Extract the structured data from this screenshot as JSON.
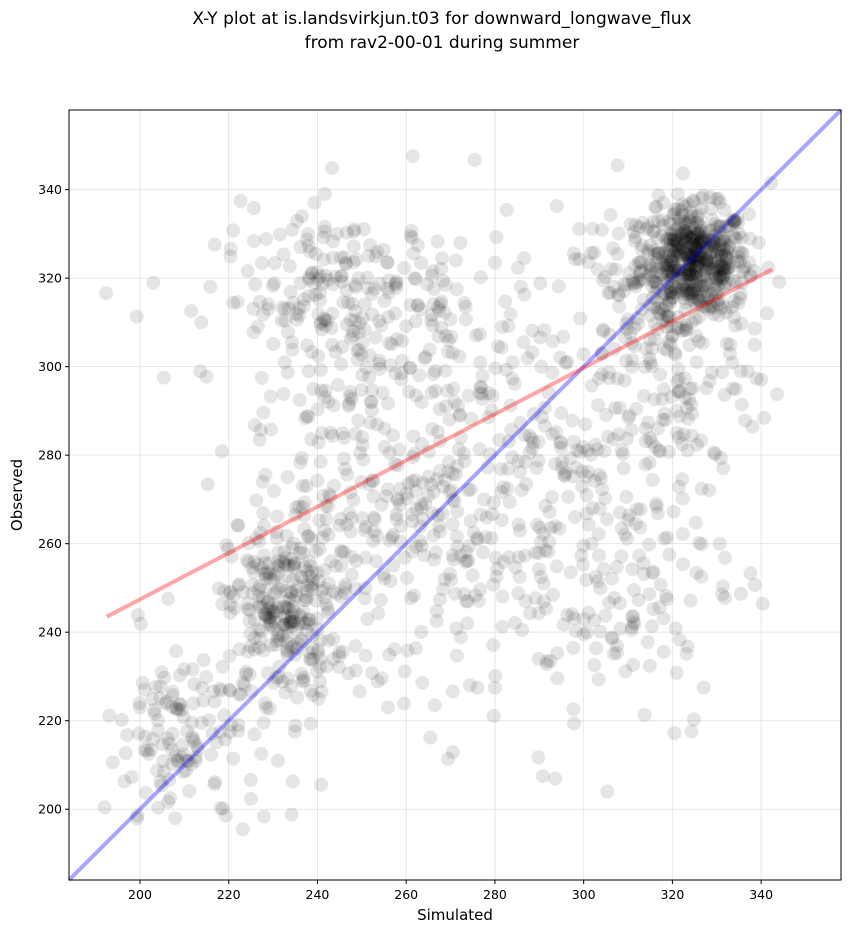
{
  "chart_data": {
    "type": "scatter",
    "title": "X-Y plot at is.landsvirkjun.t03 for downward_longwave_flux",
    "subtitle": "from rav2-00-01 during summer",
    "xlabel": "Simulated",
    "ylabel": "Observed",
    "xlim": [
      184,
      358
    ],
    "ylim": [
      184,
      358
    ],
    "x_ticks": [
      200,
      220,
      240,
      260,
      280,
      300,
      320,
      340
    ],
    "y_ticks": [
      200,
      220,
      240,
      260,
      280,
      300,
      320,
      340
    ],
    "grid": true,
    "point_color": "#000000",
    "point_alpha": 0.1,
    "approx_point_count": 2000,
    "clusters": [
      {
        "x_center": 325,
        "y_center": 324,
        "x_spread": 6,
        "y_spread": 6,
        "weight": 0.25
      },
      {
        "x_center": 318,
        "y_center": 305,
        "x_spread": 12,
        "y_spread": 18,
        "weight": 0.12
      },
      {
        "x_center": 232,
        "y_center": 245,
        "x_spread": 6,
        "y_spread": 10,
        "weight": 0.12
      },
      {
        "x_center": 245,
        "y_center": 315,
        "x_spread": 14,
        "y_spread": 10,
        "weight": 0.1
      },
      {
        "x_center": 210,
        "y_center": 215,
        "x_spread": 9,
        "y_spread": 12,
        "weight": 0.07
      },
      {
        "x_center": 270,
        "y_center": 290,
        "x_spread": 18,
        "y_spread": 22,
        "weight": 0.12
      },
      {
        "x_center": 300,
        "y_center": 255,
        "x_spread": 18,
        "y_spread": 20,
        "weight": 0.12
      },
      {
        "x_center": 250,
        "y_center": 265,
        "x_spread": 15,
        "y_spread": 22,
        "weight": 0.1
      }
    ],
    "lines": [
      {
        "name": "",
        "kind": "1:1",
        "color": "#0000ff",
        "alpha": 0.35,
        "x": [
          184,
          358
        ],
        "y": [
          184,
          358
        ]
      },
      {
        "name": "",
        "kind": "regression",
        "color": "#ff0000",
        "alpha": 0.35,
        "x": [
          192.5,
          342.5
        ],
        "y": [
          243.5,
          322
        ]
      }
    ]
  }
}
